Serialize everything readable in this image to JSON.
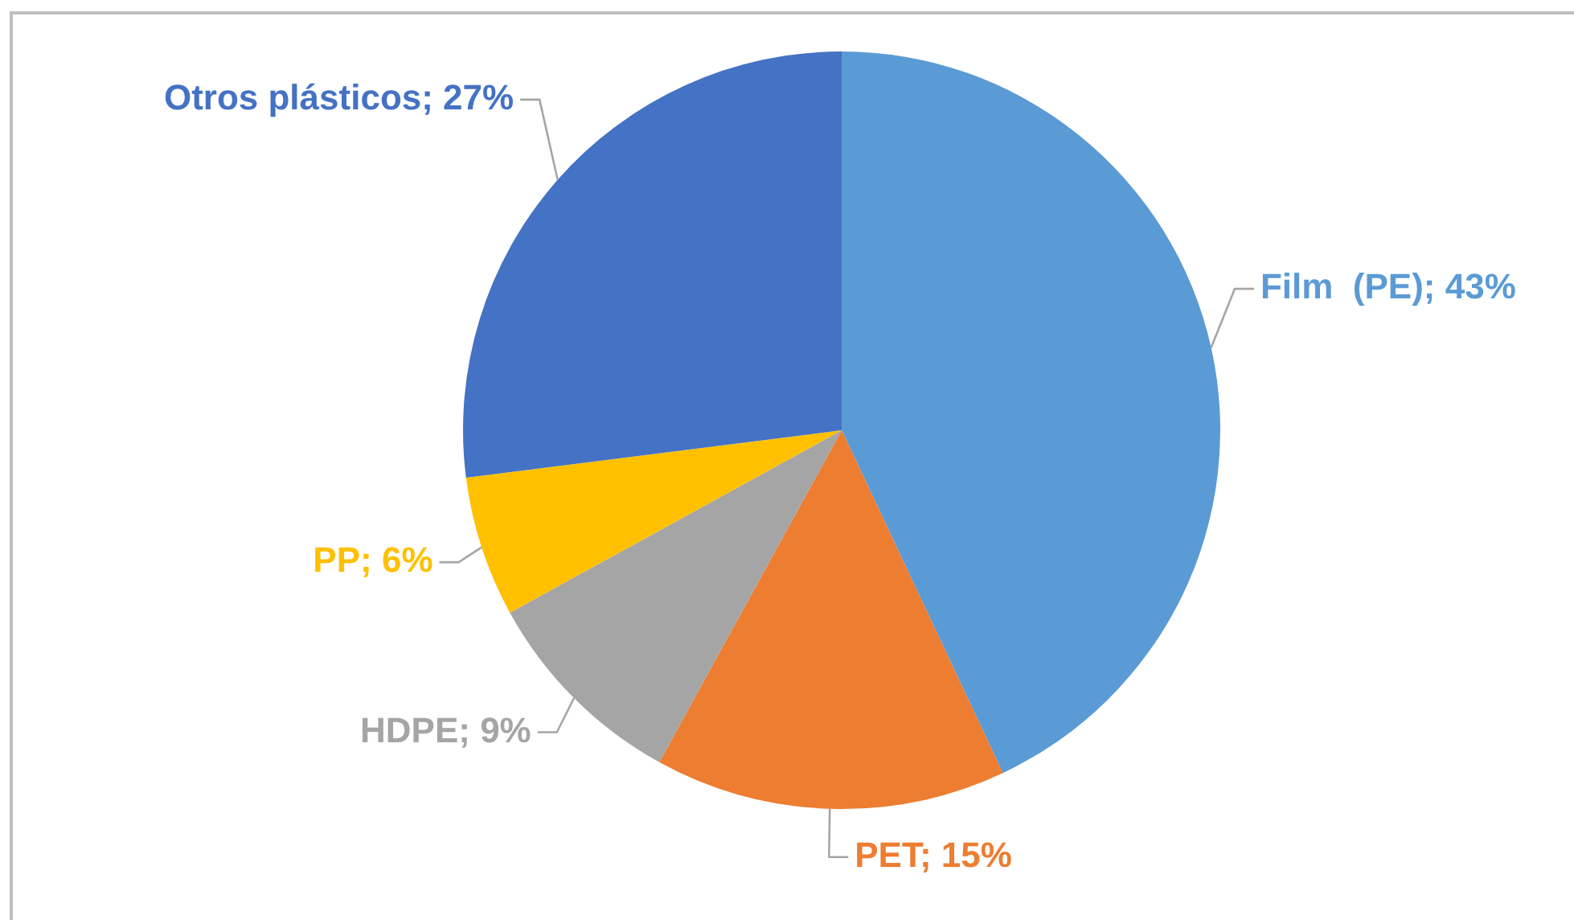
{
  "chart_data": {
    "type": "pie",
    "categories": [
      "Film  (PE)",
      "PET",
      "HDPE",
      "PP",
      "Otros plásticos"
    ],
    "values": [
      43,
      15,
      9,
      6,
      27
    ],
    "colors": [
      "#5b9bd5",
      "#ed7d31",
      "#a5a5a5",
      "#ffc000",
      "#4472c4"
    ],
    "value_labels": [
      "43%",
      "15%",
      "9%",
      "6%",
      "27%"
    ]
  }
}
